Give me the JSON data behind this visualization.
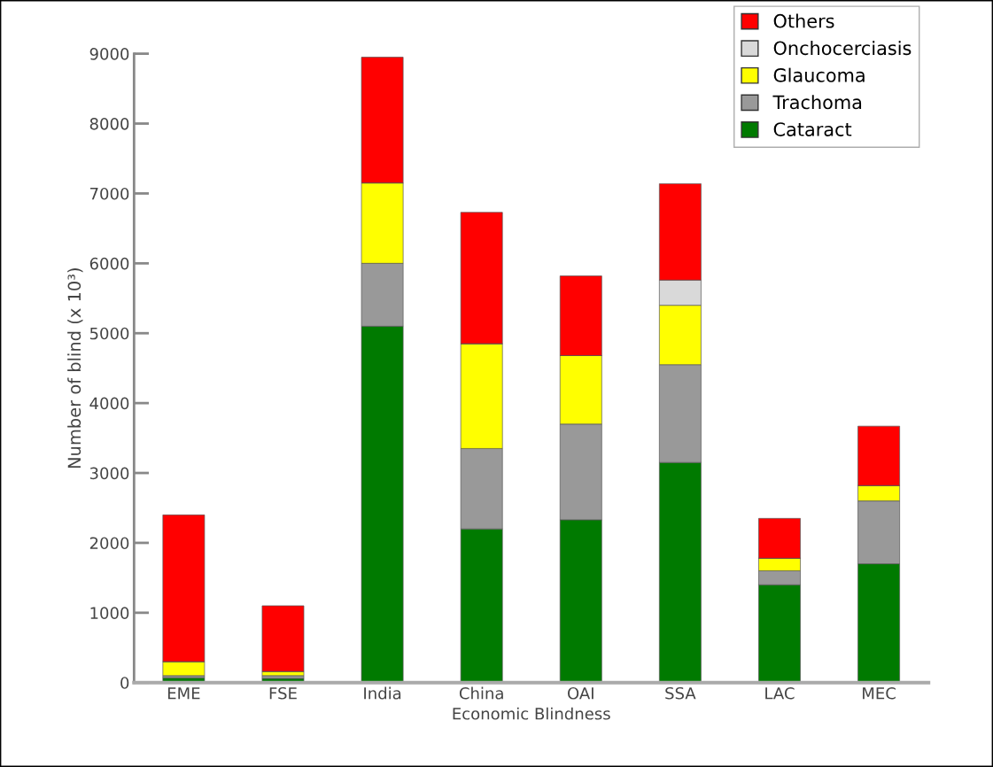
{
  "chart_data": {
    "type": "bar",
    "stacked": true,
    "xlabel": "Economic Blindness",
    "ylabel": "Number of blind (x 10³)",
    "categories": [
      "EME",
      "FSE",
      "India",
      "China",
      "OAI",
      "SSA",
      "LAC",
      "MEC"
    ],
    "series": [
      {
        "name": "Cataract",
        "color": "#007a00",
        "values": [
          70,
          60,
          5100,
          2200,
          2330,
          3150,
          1400,
          1700
        ]
      },
      {
        "name": "Trachoma",
        "color": "#999999",
        "values": [
          30,
          40,
          900,
          1150,
          1370,
          1400,
          200,
          900
        ]
      },
      {
        "name": "Glaucoma",
        "color": "#ffff00",
        "values": [
          200,
          60,
          1150,
          1500,
          980,
          850,
          180,
          220
        ]
      },
      {
        "name": "Onchocerciasis",
        "color": "#d9d9d9",
        "values": [
          0,
          0,
          0,
          0,
          0,
          360,
          0,
          0
        ]
      },
      {
        "name": "Others",
        "color": "#ff0000",
        "values": [
          2100,
          940,
          1800,
          1880,
          1140,
          1380,
          570,
          850
        ]
      }
    ],
    "ylim": [
      0,
      9000
    ],
    "yticks": [
      0,
      1000,
      2000,
      3000,
      4000,
      5000,
      6000,
      7000,
      8000,
      9000
    ],
    "grid": false,
    "legend": "top right"
  }
}
